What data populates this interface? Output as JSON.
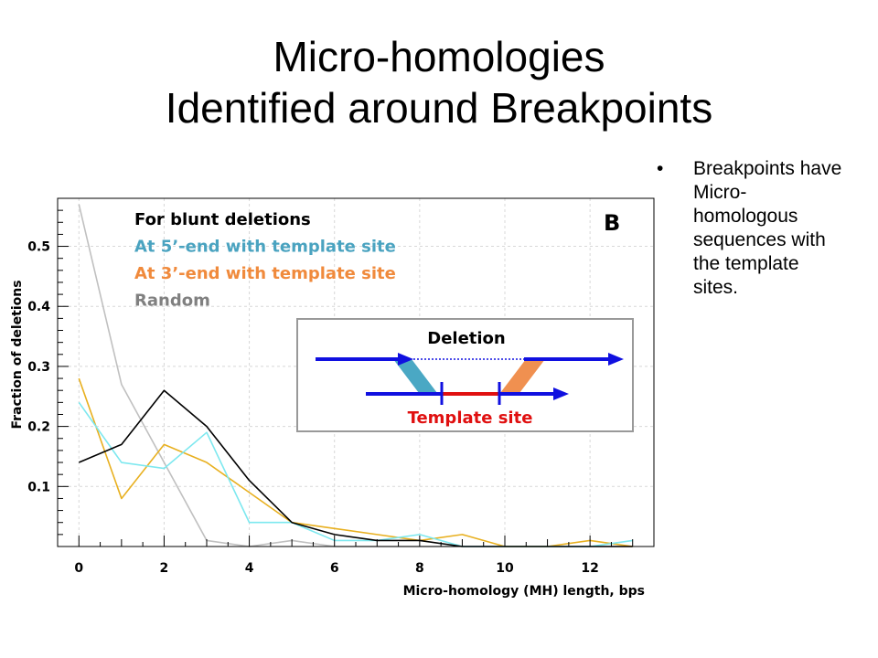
{
  "slide": {
    "title_line1": "Micro-homologies",
    "title_line2": "Identified around Breakpoints",
    "bullet": "Breakpoints have Micro-homologous sequences with the template sites."
  },
  "chart_data": {
    "type": "line",
    "panel_label": "B",
    "xlabel": "Micro-homology (MH) length, bps",
    "ylabel": "Fraction of deletions",
    "xlim": [
      -0.5,
      13.5
    ],
    "ylim": [
      0,
      0.58
    ],
    "x_ticks": [
      0,
      2,
      4,
      6,
      8,
      10,
      12
    ],
    "y_ticks": [
      0.1,
      0.2,
      0.3,
      0.4,
      0.5
    ],
    "grid": true,
    "legend_position": "top-left",
    "x": [
      0,
      1,
      2,
      3,
      4,
      5,
      6,
      7,
      8,
      9,
      10,
      11,
      12,
      13
    ],
    "series": [
      {
        "name": "For blunt deletions",
        "color": "#000000",
        "text_color": "#000000",
        "values": [
          0.14,
          0.17,
          0.26,
          0.2,
          0.11,
          0.04,
          0.02,
          0.01,
          0.01,
          0.0,
          0.0,
          0.0,
          0.0,
          0.0
        ]
      },
      {
        "name": "At 5’-end with template site",
        "color": "#7de8ef",
        "text_color": "#4aa3c0",
        "values": [
          0.24,
          0.14,
          0.13,
          0.19,
          0.04,
          0.04,
          0.01,
          0.01,
          0.02,
          0.0,
          0.0,
          0.0,
          0.0,
          0.01
        ]
      },
      {
        "name": "At 3’-end with template site",
        "color": "#e8b020",
        "text_color": "#f08a3c",
        "values": [
          0.28,
          0.08,
          0.17,
          0.14,
          0.09,
          0.04,
          0.03,
          0.02,
          0.01,
          0.02,
          0.0,
          0.0,
          0.01,
          0.0
        ]
      },
      {
        "name": "Random",
        "color": "#c0c0c0",
        "text_color": "#808080",
        "values": [
          0.57,
          0.27,
          0.14,
          0.01,
          0.0,
          0.01,
          0.0,
          0.0,
          0.0,
          0.0,
          0.0,
          0.0,
          0.0,
          0.0
        ]
      }
    ],
    "inset": {
      "top_label": "Deletion",
      "bottom_label": "Template site",
      "arrow_color": "#1010e0",
      "template_color": "#e01010",
      "left_band_color": "#4aa8c4",
      "right_band_color": "#f09050",
      "label_color": "#e01010"
    }
  }
}
